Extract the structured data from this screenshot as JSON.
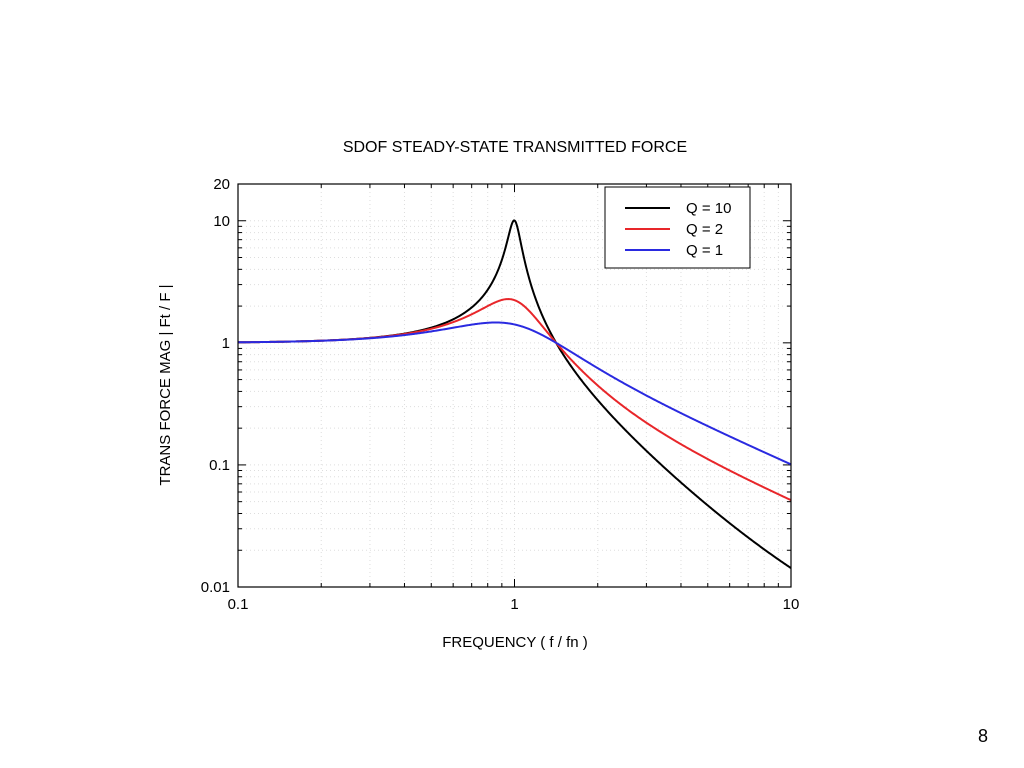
{
  "page_number": "8",
  "chart_data": {
    "type": "line",
    "title": "SDOF STEADY-STATE   TRANSMITTED FORCE",
    "xlabel": "FREQUENCY ( f / fn )",
    "ylabel": "TRANS FORCE MAG  |  Ft / F |",
    "x_scale": "log",
    "y_scale": "log",
    "xlim": [
      0.1,
      10
    ],
    "ylim": [
      0.01,
      20
    ],
    "x_ticks": [
      "0.1",
      "1",
      "10"
    ],
    "y_ticks": [
      "0.01",
      "0.1",
      "1",
      "10",
      "20"
    ],
    "grid": true,
    "legend_placement": "top-right",
    "series": [
      {
        "name": "Q = 10",
        "Q": 10,
        "color": "#000000",
        "x": [
          0.1,
          0.5,
          1,
          2,
          5,
          10
        ],
        "y": [
          1.01,
          1.332,
          10.05,
          0.339,
          0.0466,
          0.0143
        ]
      },
      {
        "name": "Q = 2",
        "Q": 2,
        "color": "#e8262a",
        "x": [
          0.1,
          0.5,
          1,
          2,
          5,
          10
        ],
        "y": [
          1.01,
          1.304,
          2.236,
          0.447,
          0.1116,
          0.0514
        ]
      },
      {
        "name": "Q = 1",
        "Q": 1,
        "color": "#2a2ae0",
        "x": [
          0.1,
          0.5,
          1,
          2,
          5,
          10
        ],
        "y": [
          1.01,
          1.24,
          1.414,
          0.62,
          0.208,
          0.101
        ]
      }
    ]
  }
}
